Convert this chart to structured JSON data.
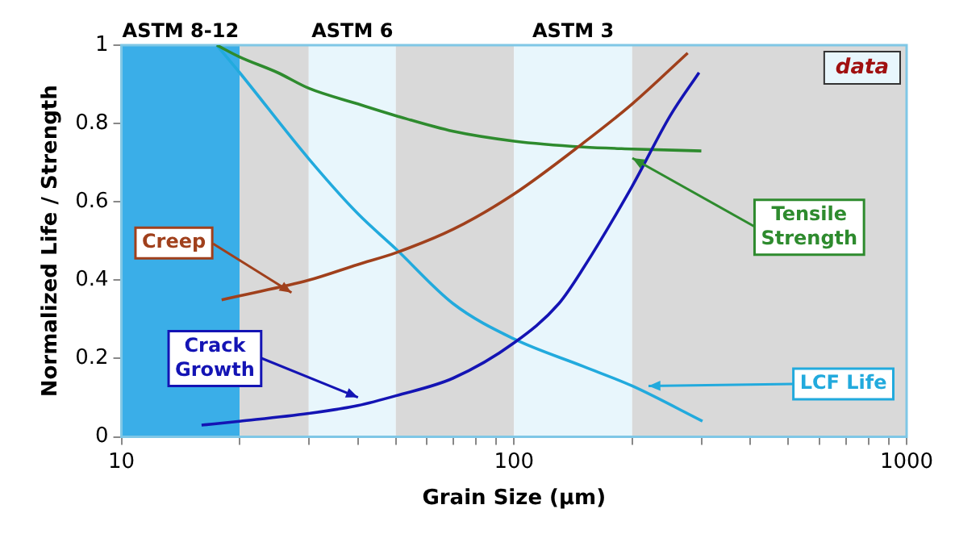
{
  "chart_data": {
    "type": "line",
    "xlabel": "Grain Size (μm)",
    "ylabel": "Normalized Life / Strength",
    "log": "x",
    "xlim": [
      10,
      1000
    ],
    "ylim": [
      0,
      1
    ],
    "xticks": [
      10,
      {
        "value": 20,
        "label": null
      },
      {
        "value": 30,
        "label": null
      },
      {
        "value": 40,
        "label": null
      },
      {
        "value": 50,
        "label": null
      },
      {
        "value": 60,
        "label": null
      },
      {
        "value": 70,
        "label": null
      },
      {
        "value": 80,
        "label": null
      },
      {
        "value": 90,
        "label": null
      },
      100,
      {
        "value": 200,
        "label": null
      },
      {
        "value": 300,
        "label": null
      },
      {
        "value": 400,
        "label": null
      },
      {
        "value": 500,
        "label": null
      },
      {
        "value": 600,
        "label": null
      },
      {
        "value": 700,
        "label": null
      },
      {
        "value": 800,
        "label": null
      },
      {
        "value": 900,
        "label": null
      },
      1000
    ],
    "yticks": [
      0,
      0.2,
      0.4,
      0.6,
      0.8,
      1
    ],
    "grid": false,
    "legend": false,
    "marker": "none",
    "line_style": "solid",
    "series": [
      {
        "name": "Creep",
        "color": "#a0401c",
        "x": [
          18,
          20,
          30,
          40,
          50,
          70,
          100,
          150,
          200,
          277
        ],
        "values": [
          0.35,
          0.36,
          0.4,
          0.44,
          0.47,
          0.53,
          0.62,
          0.75,
          0.85,
          0.98
        ]
      },
      {
        "name": "Crack Growth",
        "color": "#1414b4",
        "x": [
          16,
          20,
          30,
          40,
          50,
          70,
          100,
          130,
          150,
          200,
          250,
          296
        ],
        "values": [
          0.03,
          0.04,
          0.06,
          0.08,
          0.105,
          0.15,
          0.24,
          0.34,
          0.43,
          0.64,
          0.82,
          0.93
        ]
      },
      {
        "name": "Tensile Strength",
        "color": "#2e8b2e",
        "x": [
          17.5,
          20,
          25,
          30,
          40,
          50,
          70,
          100,
          150,
          200,
          300
        ],
        "values": [
          1,
          0.97,
          0.93,
          0.89,
          0.85,
          0.82,
          0.78,
          0.755,
          0.74,
          0.735,
          0.73
        ]
      },
      {
        "name": "LCF Life",
        "color": "#22aadd",
        "x": [
          17.5,
          20,
          30,
          40,
          50,
          70,
          100,
          150,
          200,
          302
        ],
        "values": [
          1,
          0.93,
          0.71,
          0.57,
          0.48,
          0.34,
          0.25,
          0.18,
          0.13,
          0.04
        ]
      }
    ],
    "bands": [
      {
        "axis": "x",
        "from": 10,
        "to": 20,
        "label": "ASTM 8-12",
        "color": "#3aaee8"
      },
      {
        "axis": "x",
        "from": 20,
        "to": 30,
        "label": null,
        "color": "#d9d9d9"
      },
      {
        "axis": "x",
        "from": 30,
        "to": 50,
        "label": "ASTM 6",
        "color": "#e8f6fc"
      },
      {
        "axis": "x",
        "from": 50,
        "to": 100,
        "label": null,
        "color": "#d9d9d9"
      },
      {
        "axis": "x",
        "from": 100,
        "to": 200,
        "label": "ASTM 3",
        "color": "#e8f6fc"
      },
      {
        "axis": "x",
        "from": 200,
        "to": 1000,
        "label": null,
        "color": "#d9d9d9"
      }
    ],
    "annotations": [
      "data"
    ]
  }
}
